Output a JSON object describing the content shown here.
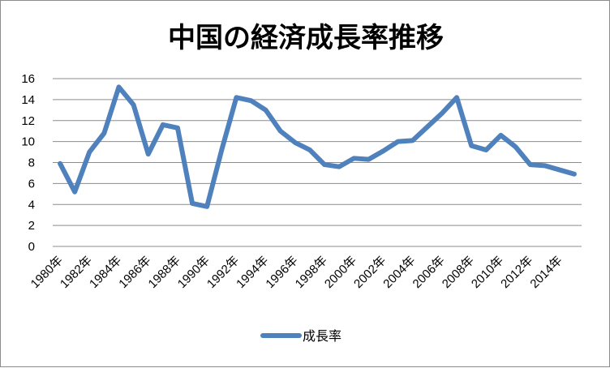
{
  "chart_data": {
    "type": "line",
    "title": "中国の経済成長率推移",
    "xlabel": "",
    "ylabel": "",
    "ylim": [
      0,
      16
    ],
    "yticks": [
      "0",
      "2",
      "4",
      "6",
      "8",
      "10",
      "12",
      "14",
      "16"
    ],
    "grid": true,
    "legend_position": "bottom",
    "categories": [
      "1980年",
      "1981年",
      "1982年",
      "1983年",
      "1984年",
      "1985年",
      "1986年",
      "1987年",
      "1988年",
      "1989年",
      "1990年",
      "1991年",
      "1992年",
      "1993年",
      "1994年",
      "1995年",
      "1996年",
      "1997年",
      "1998年",
      "1999年",
      "2000年",
      "2001年",
      "2002年",
      "2003年",
      "2004年",
      "2005年",
      "2006年",
      "2007年",
      "2008年",
      "2009年",
      "2010年",
      "2011年",
      "2012年",
      "2013年",
      "2014年",
      "2015年"
    ],
    "xtick_labels": [
      "1980年",
      "1982年",
      "1984年",
      "1986年",
      "1988年",
      "1990年",
      "1992年",
      "1994年",
      "1996年",
      "1998年",
      "2000年",
      "2002年",
      "2004年",
      "2006年",
      "2008年",
      "2010年",
      "2012年",
      "2014年"
    ],
    "series": [
      {
        "name": "成長率",
        "color": "#4f81bd",
        "values": [
          7.9,
          5.2,
          9.0,
          10.8,
          15.2,
          13.5,
          8.8,
          11.6,
          11.3,
          4.1,
          3.8,
          9.2,
          14.2,
          13.9,
          13.0,
          11.0,
          9.9,
          9.2,
          7.8,
          7.6,
          8.4,
          8.3,
          9.1,
          10.0,
          10.1,
          11.4,
          12.7,
          14.2,
          9.6,
          9.2,
          10.6,
          9.5,
          7.8,
          7.7,
          7.3,
          6.9
        ]
      }
    ]
  }
}
